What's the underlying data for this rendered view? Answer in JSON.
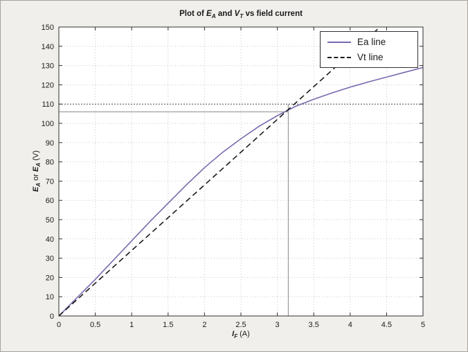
{
  "window": {
    "background": "#f1efec",
    "plot_background": "#ffffff",
    "accent_purple": "#7a68ae",
    "annotation_gray": "#8a8a8a"
  },
  "labels": {
    "title": {
      "pre": "Plot of ",
      "e": "E",
      "e_sub": "A",
      "mid": " and ",
      "v": "V",
      "v_sub": "T",
      "post": " vs field current"
    },
    "ylabel": {
      "e1": "E",
      "e1_sub": "A",
      "mid": " or ",
      "e2": "E",
      "e2_sub": "A",
      "post": " (V)"
    },
    "xlabel": {
      "i": "I",
      "i_sub": "F",
      "post": " (A)"
    }
  },
  "chart_data": {
    "type": "line",
    "title": "Plot of E_A and V_T vs field current",
    "xlabel": "I_F (A)",
    "ylabel": "E_A or E_A (V)",
    "xlim": [
      0,
      5
    ],
    "ylim": [
      0,
      150
    ],
    "xticks": [
      0,
      0.5,
      1,
      1.5,
      2,
      2.5,
      3,
      3.5,
      4,
      4.5,
      5
    ],
    "xtick_labels": [
      "0",
      "0.5",
      "1",
      "1.5",
      "2",
      "2.5",
      "3",
      "3.5",
      "4",
      "4.5",
      "5"
    ],
    "yticks": [
      0,
      10,
      20,
      30,
      40,
      50,
      60,
      70,
      80,
      90,
      100,
      110,
      120,
      130,
      140,
      150
    ],
    "ytick_labels": [
      "0",
      "10",
      "20",
      "30",
      "40",
      "50",
      "60",
      "70",
      "80",
      "90",
      "100",
      "110",
      "120",
      "130",
      "140",
      "150"
    ],
    "grid": "dotted",
    "legend_position": "top-right",
    "series": [
      {
        "name": "Ea line",
        "style": "solid",
        "color": "#7a68ae",
        "x": [
          0,
          0.25,
          0.5,
          0.75,
          1,
          1.25,
          1.5,
          1.75,
          2,
          2.25,
          2.5,
          2.75,
          3,
          3.25,
          3.5,
          3.75,
          4,
          4.25,
          4.5,
          4.75,
          5
        ],
        "y": [
          0,
          9.5,
          19,
          29,
          39,
          49,
          58.5,
          68,
          77,
          85,
          92,
          98.5,
          104,
          108.8,
          112.5,
          115.8,
          118.8,
          121.5,
          124,
          126.5,
          129
        ]
      },
      {
        "name": "Vt line",
        "style": "dashed",
        "color": "#1a1a1a",
        "x": [
          0,
          4.41
        ],
        "y": [
          0,
          150
        ]
      }
    ],
    "annotations": [
      {
        "type": "hline",
        "y": 110,
        "x0": 0,
        "x1": 5,
        "style": "dotted",
        "color": "#4d4d4d"
      },
      {
        "type": "hline",
        "y": 106,
        "x0": 0,
        "x1": 3.15,
        "style": "solid",
        "color": "#8a8a8a"
      },
      {
        "type": "vline",
        "x": 3.15,
        "y0": 0,
        "y1": 110,
        "style": "solid",
        "color": "#8a8a8a"
      }
    ]
  }
}
